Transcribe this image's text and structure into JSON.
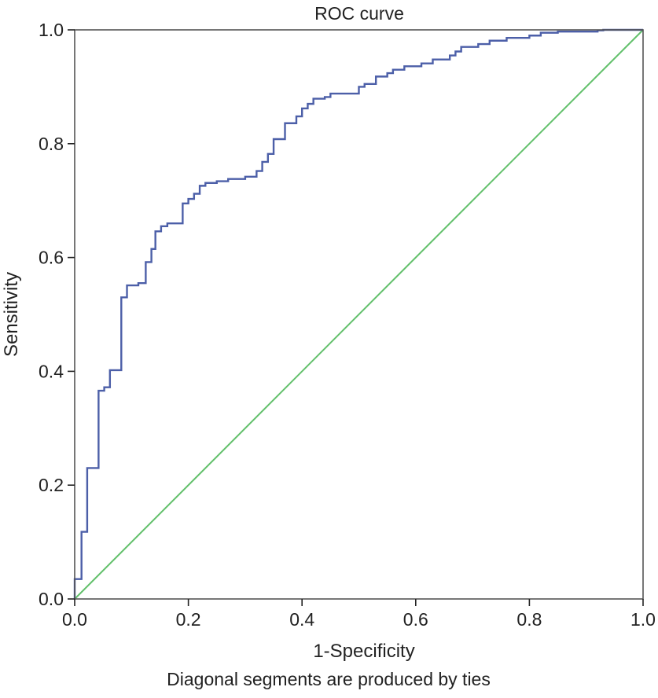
{
  "chart_data": {
    "type": "line",
    "title": "ROC curve",
    "xlabel": "1-Specificity",
    "ylabel": "Sensitivity",
    "footnote": "Diagonal segments are produced by ties",
    "xlim": [
      0,
      1
    ],
    "ylim": [
      0,
      1
    ],
    "x_ticks": [
      "0.0",
      "0.2",
      "0.4",
      "0.6",
      "0.8",
      "1.0"
    ],
    "y_ticks": [
      "0.0",
      "0.2",
      "0.4",
      "0.6",
      "0.8",
      "1.0"
    ],
    "grid": false,
    "legend": "none",
    "colors": {
      "roc": "#4c5fa8",
      "reference": "#62c06b",
      "frame": "#555555"
    },
    "series": [
      {
        "key": "roc",
        "points": [
          [
            0.0,
            0.0
          ],
          [
            0.0,
            0.035
          ],
          [
            0.012,
            0.035
          ],
          [
            0.012,
            0.118
          ],
          [
            0.022,
            0.118
          ],
          [
            0.022,
            0.23
          ],
          [
            0.042,
            0.23
          ],
          [
            0.042,
            0.366
          ],
          [
            0.052,
            0.366
          ],
          [
            0.052,
            0.372
          ],
          [
            0.062,
            0.372
          ],
          [
            0.062,
            0.402
          ],
          [
            0.082,
            0.402
          ],
          [
            0.082,
            0.53
          ],
          [
            0.092,
            0.53
          ],
          [
            0.092,
            0.551
          ],
          [
            0.112,
            0.551
          ],
          [
            0.112,
            0.555
          ],
          [
            0.125,
            0.555
          ],
          [
            0.125,
            0.592
          ],
          [
            0.135,
            0.592
          ],
          [
            0.135,
            0.615
          ],
          [
            0.142,
            0.615
          ],
          [
            0.142,
            0.646
          ],
          [
            0.152,
            0.646
          ],
          [
            0.152,
            0.655
          ],
          [
            0.163,
            0.655
          ],
          [
            0.163,
            0.66
          ],
          [
            0.19,
            0.66
          ],
          [
            0.19,
            0.695
          ],
          [
            0.2,
            0.695
          ],
          [
            0.2,
            0.703
          ],
          [
            0.21,
            0.703
          ],
          [
            0.21,
            0.712
          ],
          [
            0.22,
            0.712
          ],
          [
            0.22,
            0.726
          ],
          [
            0.23,
            0.726
          ],
          [
            0.23,
            0.731
          ],
          [
            0.25,
            0.731
          ],
          [
            0.25,
            0.734
          ],
          [
            0.27,
            0.734
          ],
          [
            0.27,
            0.738
          ],
          [
            0.3,
            0.738
          ],
          [
            0.3,
            0.742
          ],
          [
            0.32,
            0.742
          ],
          [
            0.32,
            0.752
          ],
          [
            0.33,
            0.752
          ],
          [
            0.33,
            0.768
          ],
          [
            0.34,
            0.768
          ],
          [
            0.34,
            0.782
          ],
          [
            0.35,
            0.782
          ],
          [
            0.35,
            0.808
          ],
          [
            0.37,
            0.808
          ],
          [
            0.37,
            0.836
          ],
          [
            0.39,
            0.836
          ],
          [
            0.39,
            0.848
          ],
          [
            0.4,
            0.848
          ],
          [
            0.4,
            0.862
          ],
          [
            0.41,
            0.862
          ],
          [
            0.41,
            0.87
          ],
          [
            0.42,
            0.87
          ],
          [
            0.42,
            0.879
          ],
          [
            0.44,
            0.879
          ],
          [
            0.44,
            0.882
          ],
          [
            0.45,
            0.882
          ],
          [
            0.45,
            0.888
          ],
          [
            0.5,
            0.888
          ],
          [
            0.5,
            0.9
          ],
          [
            0.51,
            0.9
          ],
          [
            0.51,
            0.905
          ],
          [
            0.53,
            0.905
          ],
          [
            0.53,
            0.918
          ],
          [
            0.55,
            0.918
          ],
          [
            0.55,
            0.924
          ],
          [
            0.56,
            0.924
          ],
          [
            0.56,
            0.93
          ],
          [
            0.58,
            0.93
          ],
          [
            0.58,
            0.936
          ],
          [
            0.61,
            0.936
          ],
          [
            0.61,
            0.941
          ],
          [
            0.63,
            0.941
          ],
          [
            0.63,
            0.948
          ],
          [
            0.66,
            0.948
          ],
          [
            0.66,
            0.955
          ],
          [
            0.67,
            0.955
          ],
          [
            0.67,
            0.962
          ],
          [
            0.68,
            0.962
          ],
          [
            0.68,
            0.97
          ],
          [
            0.71,
            0.97
          ],
          [
            0.71,
            0.975
          ],
          [
            0.73,
            0.975
          ],
          [
            0.73,
            0.981
          ],
          [
            0.76,
            0.981
          ],
          [
            0.76,
            0.986
          ],
          [
            0.8,
            0.986
          ],
          [
            0.8,
            0.99
          ],
          [
            0.82,
            0.99
          ],
          [
            0.82,
            0.995
          ],
          [
            0.85,
            0.995
          ],
          [
            0.85,
            0.997
          ],
          [
            0.92,
            0.997
          ],
          [
            0.92,
            0.999
          ],
          [
            0.93,
            0.999
          ],
          [
            0.93,
            1.0
          ],
          [
            1.0,
            1.0
          ]
        ]
      },
      {
        "key": "reference",
        "points": [
          [
            0.0,
            0.0
          ],
          [
            1.0,
            1.0
          ]
        ]
      }
    ]
  }
}
